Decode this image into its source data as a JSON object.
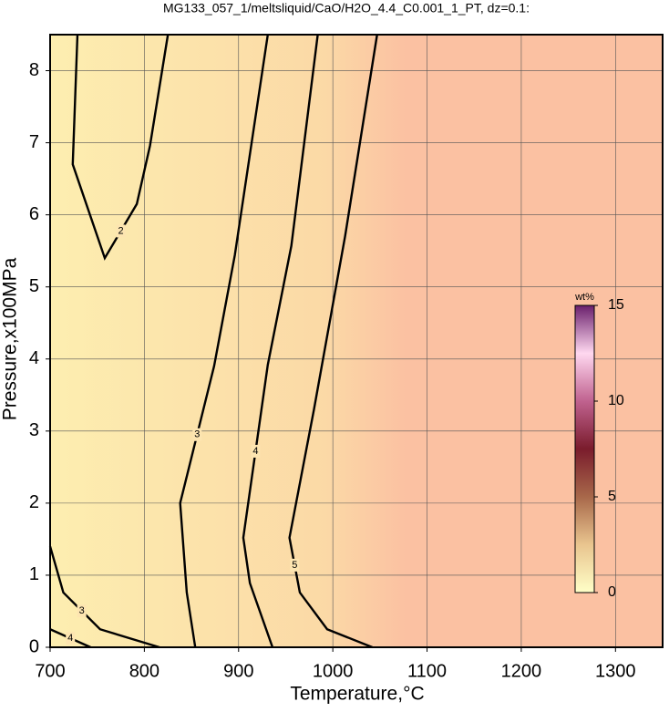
{
  "chart_data": {
    "type": "contour",
    "title": "MG133_057_1/meltsliquid/CaO/H2O_4.4_C0.001_1_PT, dz=0.1:",
    "x_label": "Temperature,°C",
    "y_label": "Pressure,x100MPa",
    "xlim": [
      700,
      1350
    ],
    "ylim": [
      0,
      8.5
    ],
    "xticks": [
      700,
      800,
      900,
      1000,
      1100,
      1200,
      1300
    ],
    "yticks": [
      0,
      1,
      2,
      3,
      4,
      5,
      6,
      7,
      8
    ],
    "grid": true,
    "fill_colors": [
      "#fdeeb0",
      "#fbd9a6",
      "#fbc1a2"
    ],
    "contours": [
      {
        "level": 2,
        "x": [
          729,
          724,
          758,
          792,
          806,
          825
        ],
        "y": [
          8.5,
          6.7,
          5.4,
          6.15,
          6.96,
          8.5
        ]
      },
      {
        "level": 3,
        "x": [
          931,
          896,
          874,
          838,
          845,
          854
        ],
        "y": [
          8.5,
          5.44,
          3.9,
          2.0,
          0.76,
          0
        ]
      },
      {
        "level": 3,
        "x": [
          700,
          714,
          753,
          816
        ],
        "y": [
          1.4,
          0.76,
          0.25,
          0
        ]
      },
      {
        "level": 4,
        "x": [
          984,
          956,
          931,
          905,
          912,
          936
        ],
        "y": [
          8.5,
          5.57,
          3.92,
          1.52,
          0.89,
          0
        ]
      },
      {
        "level": 4,
        "x": [
          700,
          743
        ],
        "y": [
          0.25,
          0
        ]
      },
      {
        "level": 5,
        "x": [
          1047,
          1013,
          980,
          954,
          965,
          994,
          1042
        ],
        "y": [
          8.5,
          5.7,
          3.3,
          1.52,
          0.76,
          0.25,
          0
        ]
      }
    ],
    "colorbar": {
      "label": "wt%",
      "lim": [
        0,
        15
      ],
      "ticks": [
        0,
        5,
        10,
        15
      ],
      "colors": [
        "#ffffc8",
        "#e9c58f",
        "#a8684a",
        "#7a1c2c",
        "#c0628f",
        "#ffd8f0",
        "#6a1f6c"
      ]
    }
  }
}
